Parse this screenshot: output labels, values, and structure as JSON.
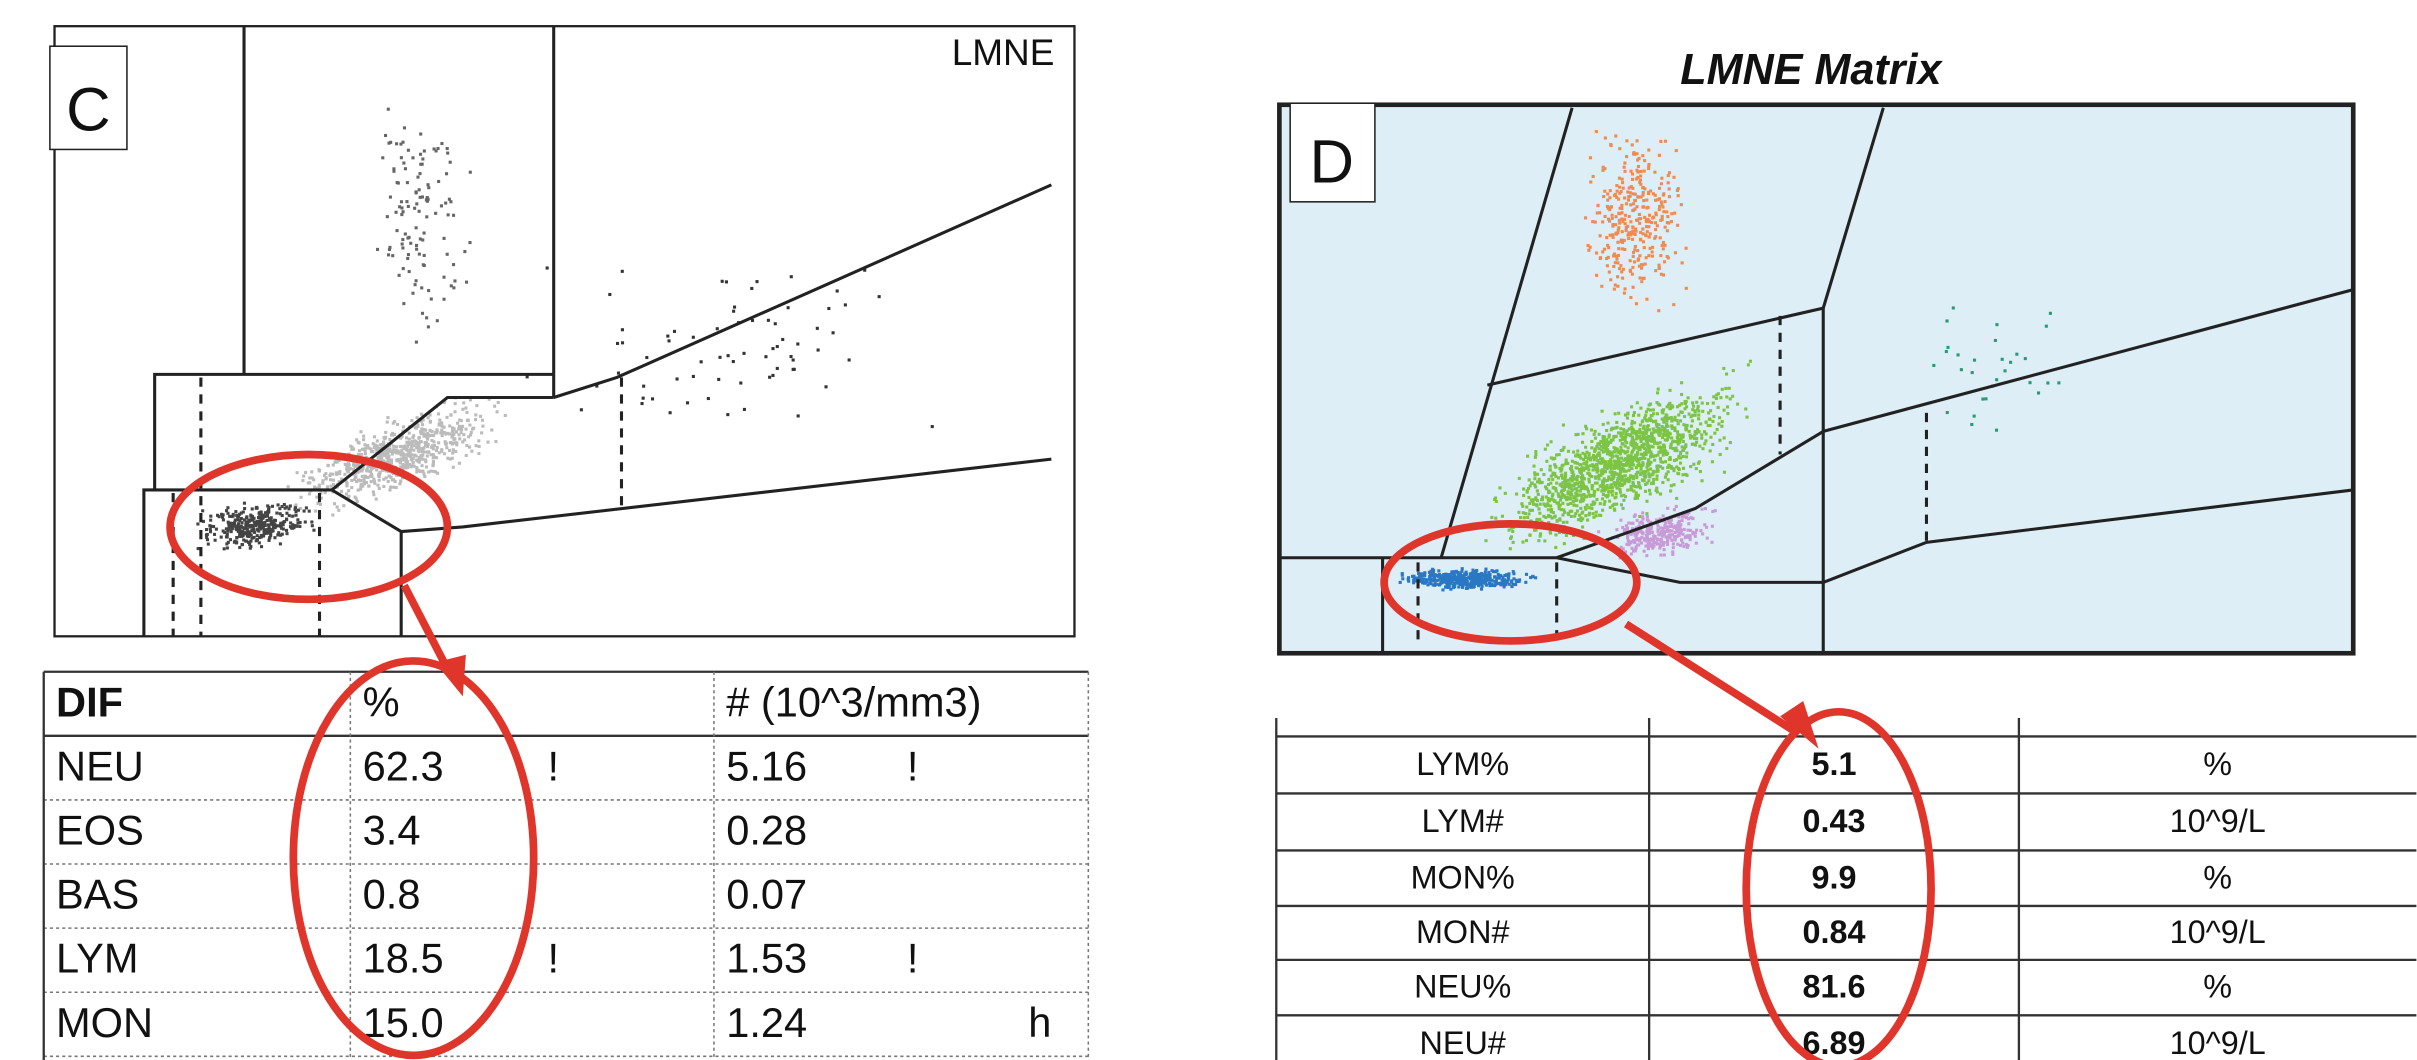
{
  "panel_c": {
    "label": "C",
    "plot_title": "LMNE",
    "table": {
      "header": [
        "DIF",
        "%",
        "# (10^3/mm3)"
      ],
      "rows": [
        {
          "name": "NEU",
          "pct": "62.3",
          "pct_flag": "!",
          "count": "5.16",
          "count_flag": "!"
        },
        {
          "name": "EOS",
          "pct": "3.4",
          "count": "0.28"
        },
        {
          "name": "BAS",
          "pct": "0.8",
          "count": "0.07"
        },
        {
          "name": "LYM",
          "pct": "18.5",
          "pct_flag": "!",
          "count": "1.53",
          "count_flag": "!"
        },
        {
          "name": "MON",
          "pct": "15.0",
          "count": "1.24",
          "count_flag": "h"
        }
      ]
    }
  },
  "panel_d": {
    "label": "D",
    "plot_title": "LMNE Matrix",
    "table": {
      "rows": [
        [
          "LYM%",
          "5.1",
          "%"
        ],
        [
          "LYM#",
          "0.43",
          "10^9/L"
        ],
        [
          "MON%",
          "9.9",
          "%"
        ],
        [
          "MON#",
          "0.84",
          "10^9/L"
        ],
        [
          "NEU%",
          "81.6",
          "%"
        ],
        [
          "NEU#",
          "6.89",
          "10^9/L"
        ]
      ]
    }
  }
}
